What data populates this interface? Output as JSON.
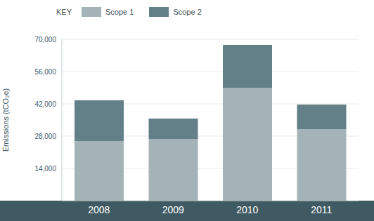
{
  "chart_data": {
    "type": "bar",
    "categories": [
      "2008",
      "2009",
      "2010",
      "2011"
    ],
    "series": [
      {
        "name": "Scope 1",
        "color": "#a3b3b8",
        "values": [
          25900,
          26800,
          49000,
          31000
        ]
      },
      {
        "name": "Scope 2",
        "color": "#637f87",
        "values": [
          17600,
          8800,
          18600,
          10700
        ]
      }
    ],
    "y_label": "Emissions (tCO₂e)",
    "legend_title": "KEY",
    "legend": "top-left",
    "stacked": true,
    "grid": true,
    "ylim": [
      0,
      70000
    ],
    "yticks": [
      {
        "value": 14000,
        "label": "14,000"
      },
      {
        "value": 28000,
        "label": "28,000"
      },
      {
        "value": 42000,
        "label": "42,000"
      },
      {
        "value": 56000,
        "label": "56,000"
      },
      {
        "value": 70000,
        "label": "70,000"
      }
    ]
  }
}
